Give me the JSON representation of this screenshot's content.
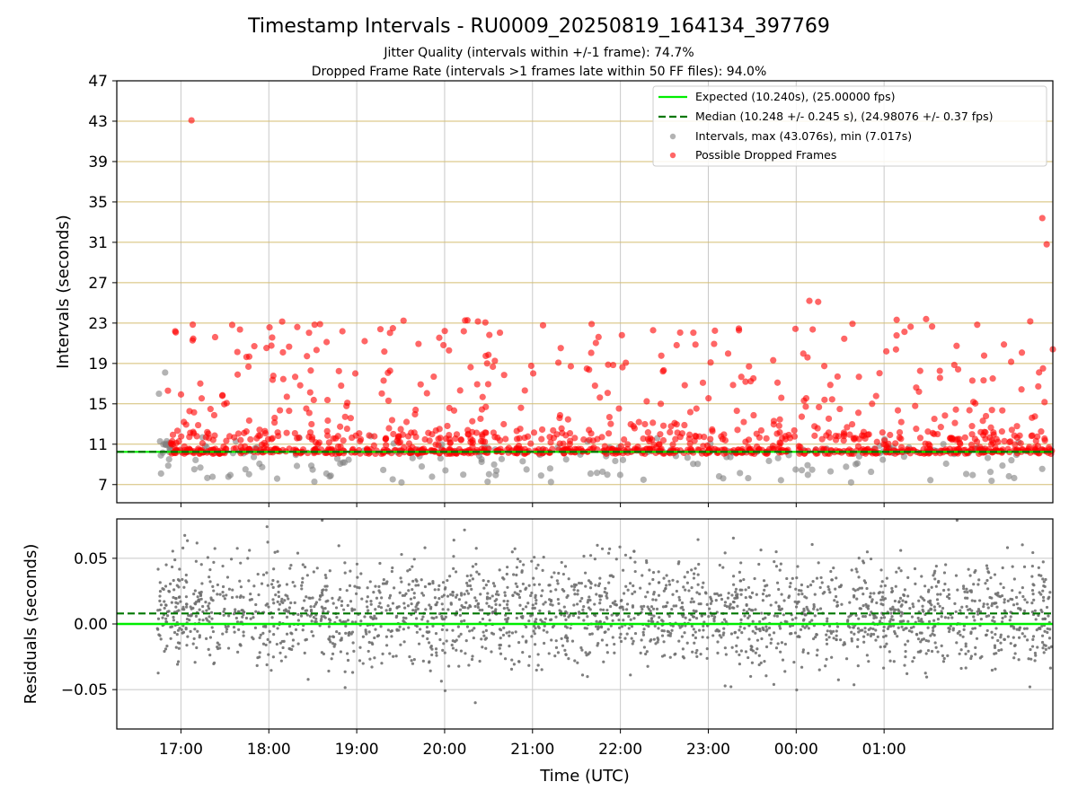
{
  "title": "Timestamp Intervals - RU0009_20250819_164134_397769",
  "subtitle1": "Jitter Quality (intervals within +/-1 frame): 74.7%",
  "subtitle2": "Dropped Frame Rate (intervals >1 frames late within 50 FF files): 94.0%",
  "colors": {
    "expected": "#00ee00",
    "median": "#007700",
    "intervals": "#808080",
    "dropped": "#ff0000",
    "hgrid_top": "#d4bd72",
    "grid": "#c8c8c8"
  },
  "chart_data": [
    {
      "type": "scatter",
      "xlabel": "",
      "ylabel": "Intervals (seconds)",
      "xlim": [
        16.27,
        26.92
      ],
      "ylim": [
        5.2,
        47
      ],
      "yticks": [
        "7",
        "11",
        "15",
        "19",
        "23",
        "27",
        "31",
        "35",
        "39",
        "43",
        "47"
      ],
      "grid": "horizontal (gold) and vertical (gray)",
      "legend_placement": "top-right",
      "legend": [
        "Expected (10.240s), (25.00000 fps)",
        "Median (10.248 +/- 0.245 s), (24.98076 +/- 0.37 fps)",
        "Intervals, max (43.076s), min (7.017s)",
        "Possible Dropped Frames"
      ],
      "reference_lines": {
        "expected": 10.24,
        "median": 10.248
      },
      "series": [
        {
          "name": "Intervals, max (43.076s), min (7.017s)",
          "x_range_hours": [
            16.73,
            26.92
          ],
          "y_min": 7.017,
          "y_max": 43.076
        },
        {
          "name": "Possible Dropped Frames",
          "notable_points": [
            [
              17.12,
              43.08
            ],
            [
              26.8,
              33.4
            ],
            [
              26.85,
              30.8
            ],
            [
              26.92,
              20.4
            ],
            [
              24.25,
              25.1
            ],
            [
              24.15,
              25.2
            ]
          ]
        }
      ]
    },
    {
      "type": "scatter",
      "xlabel": "Time (UTC)",
      "ylabel": "Residuals (seconds)",
      "xlim": [
        16.27,
        26.92
      ],
      "ylim": [
        -0.08,
        0.08
      ],
      "yticks": [
        "−0.05",
        "0.00",
        "0.05"
      ],
      "xticks": [
        "17:00",
        "18:00",
        "19:00",
        "20:00",
        "21:00",
        "22:00",
        "23:00",
        "00:00",
        "01:00"
      ],
      "reference_lines": {
        "expected": 0.0,
        "median": 0.008
      }
    }
  ]
}
